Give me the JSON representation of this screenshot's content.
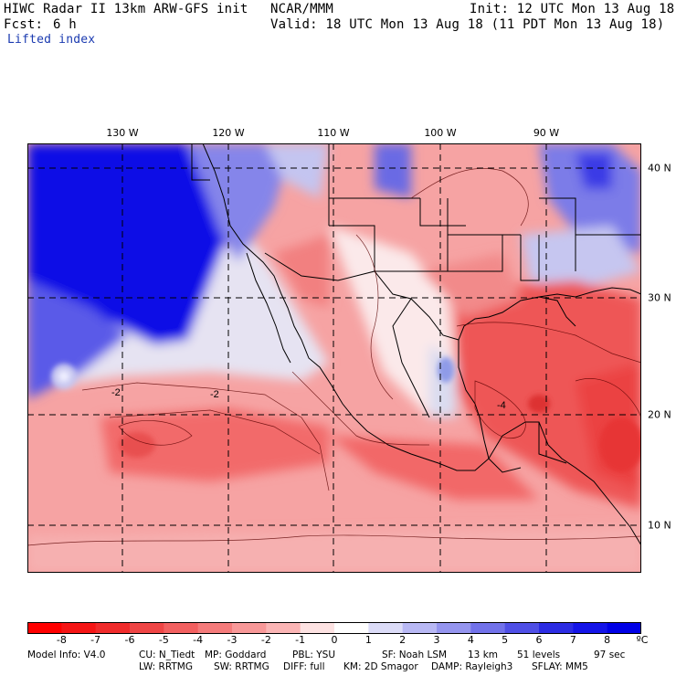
{
  "header": {
    "title": "HIWC Radar II 13km ARW-GFS init",
    "org": "NCAR/MMM",
    "init": "Init: 12 UTC Mon 13 Aug 18",
    "fcst_label": "Fcst:",
    "fcst_value": "6 h",
    "valid": "Valid: 18 UTC Mon 13 Aug 18 (11 PDT Mon 13 Aug 18)",
    "field": "Lifted index"
  },
  "map": {
    "lon_labels": [
      "130 W",
      "120 W",
      "110 W",
      "100 W",
      "90 W"
    ],
    "lat_labels": [
      "40 N",
      "30 N",
      "20 N",
      "10 N"
    ],
    "contour_labels": [
      "-2",
      "-2",
      "-4"
    ],
    "colors": {
      "grid": "#000000",
      "strong_positive": "#0000ee",
      "strong_negative": "#ff0000"
    }
  },
  "colorbar": {
    "levels": [
      "-8",
      "-7",
      "-6",
      "-5",
      "-4",
      "-3",
      "-2",
      "-1",
      "0",
      "1",
      "2",
      "3",
      "4",
      "5",
      "6",
      "7",
      "8"
    ],
    "unit": "ºC",
    "colors": [
      "#ff0000",
      "#f51515",
      "#f02b2b",
      "#ef4545",
      "#f26060",
      "#f57b7b",
      "#f89898",
      "#fbb5b5",
      "#fde2e2",
      "#ffffff",
      "#dcdcf8",
      "#b8b8f4",
      "#9595ef",
      "#7272ea",
      "#4f4fe6",
      "#2c2ce3",
      "#1414e8",
      "#0000e6"
    ]
  },
  "footer": {
    "line1": [
      "Model Info: V4.0",
      "CU: N_Tiedt",
      "MP: Goddard",
      "PBL: YSU",
      "SF: Noah LSM",
      "13 km",
      "51 levels",
      "97 sec"
    ],
    "line2": [
      "LW: RRTMG",
      "SW: RRTMG",
      "DIFF: full",
      "KM: 2D Smagor",
      "DAMP: Rayleigh3",
      "SFLAY: MM5"
    ]
  }
}
